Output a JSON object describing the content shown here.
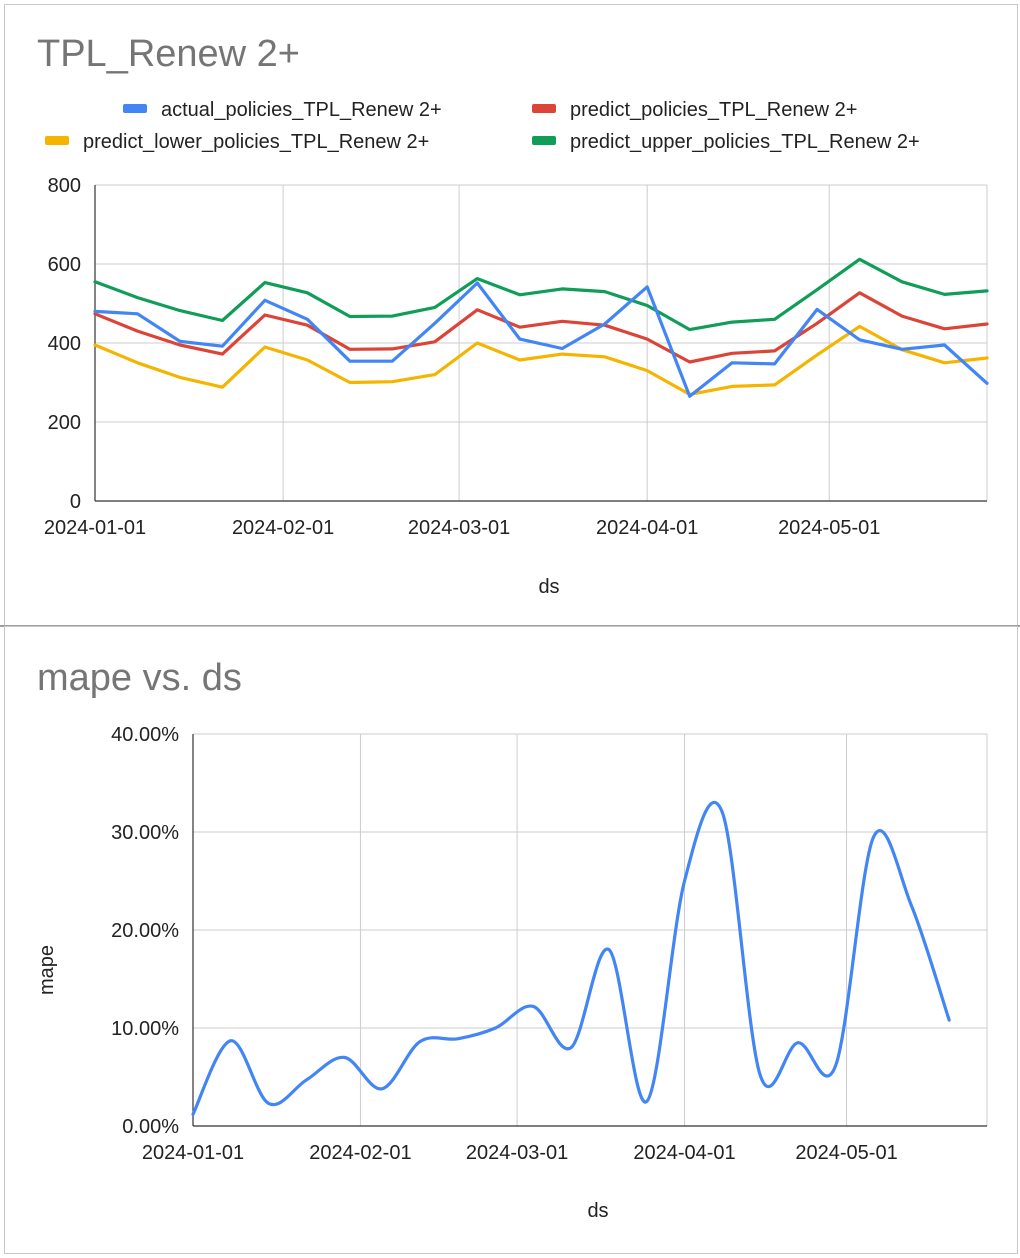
{
  "chart_data": [
    {
      "type": "line",
      "title": "TPL_Renew 2+",
      "xlabel": "ds",
      "ylabel": "",
      "ylim": [
        0,
        800
      ],
      "yticks": [
        "0",
        "200",
        "400",
        "600",
        "800"
      ],
      "y_tick_values": [
        0,
        200,
        400,
        600,
        800
      ],
      "x_tick_labels": [
        "2024-01-01",
        "2024-02-01",
        "2024-03-01",
        "2024-04-01",
        "2024-05-01"
      ],
      "x_tick_dates": [
        "2024-01-01",
        "2024-02-01",
        "2024-03-01",
        "2024-04-01",
        "2024-05-01"
      ],
      "xlim": [
        "2024-01-01",
        "2024-05-27"
      ],
      "legend_position": "top",
      "grid": true,
      "x": [
        "2024-01-01",
        "2024-01-08",
        "2024-01-15",
        "2024-01-22",
        "2024-01-29",
        "2024-02-05",
        "2024-02-12",
        "2024-02-19",
        "2024-02-26",
        "2024-03-04",
        "2024-03-11",
        "2024-03-18",
        "2024-03-25",
        "2024-04-01",
        "2024-04-08",
        "2024-04-15",
        "2024-04-22",
        "2024-04-29",
        "2024-05-06",
        "2024-05-13",
        "2024-05-20",
        "2024-05-27"
      ],
      "series": [
        {
          "name": "actual_policies_TPL_Renew 2+",
          "color": "#4285f4",
          "values": [
            480,
            474,
            404,
            392,
            508,
            460,
            354,
            354,
            450,
            552,
            410,
            386,
            448,
            542,
            265,
            350,
            347,
            485,
            408,
            384,
            395,
            298
          ]
        },
        {
          "name": "predict_policies_TPL_Renew 2+",
          "color": "#db4437",
          "values": [
            474,
            430,
            395,
            372,
            471,
            445,
            384,
            385,
            403,
            484,
            440,
            455,
            445,
            410,
            352,
            374,
            380,
            450,
            527,
            468,
            436,
            448
          ]
        },
        {
          "name": "predict_lower_policies_TPL_Renew 2+",
          "color": "#f4b400",
          "values": [
            395,
            350,
            313,
            288,
            390,
            357,
            300,
            302,
            320,
            400,
            357,
            372,
            365,
            330,
            270,
            290,
            294,
            370,
            442,
            383,
            350,
            362
          ]
        },
        {
          "name": "predict_upper_policies_TPL_Renew 2+",
          "color": "#0f9d58",
          "values": [
            555,
            515,
            482,
            457,
            553,
            527,
            467,
            468,
            490,
            563,
            522,
            537,
            530,
            495,
            434,
            453,
            460,
            535,
            612,
            555,
            523,
            532
          ]
        }
      ]
    },
    {
      "type": "line",
      "title": "mape vs. ds",
      "xlabel": "ds",
      "ylabel": "mape",
      "ylim": [
        0,
        0.4
      ],
      "yticks": [
        "0.00%",
        "10.00%",
        "20.00%",
        "30.00%",
        "40.00%"
      ],
      "y_tick_values": [
        0,
        0.1,
        0.2,
        0.3,
        0.4
      ],
      "x_tick_labels": [
        "2024-01-01",
        "2024-02-01",
        "2024-03-01",
        "2024-04-01",
        "2024-05-01"
      ],
      "x_tick_dates": [
        "2024-01-01",
        "2024-02-01",
        "2024-03-01",
        "2024-04-01",
        "2024-05-01"
      ],
      "xlim": [
        "2024-01-01",
        "2024-05-27"
      ],
      "grid": true,
      "smooth": true,
      "x": [
        "2024-01-01",
        "2024-01-08",
        "2024-01-15",
        "2024-01-22",
        "2024-01-29",
        "2024-02-05",
        "2024-02-12",
        "2024-02-19",
        "2024-02-26",
        "2024-03-04",
        "2024-03-11",
        "2024-03-18",
        "2024-03-25",
        "2024-04-01",
        "2024-04-08",
        "2024-04-15",
        "2024-04-22",
        "2024-04-29",
        "2024-05-06",
        "2024-05-13",
        "2024-05-20"
      ],
      "series": [
        {
          "name": "mape",
          "color": "#4285f4",
          "values": [
            0.012,
            0.087,
            0.023,
            0.047,
            0.07,
            0.038,
            0.086,
            0.089,
            0.1,
            0.122,
            0.08,
            0.18,
            0.025,
            0.25,
            0.32,
            0.052,
            0.085,
            0.062,
            0.295,
            0.225,
            0.108
          ]
        }
      ]
    }
  ]
}
